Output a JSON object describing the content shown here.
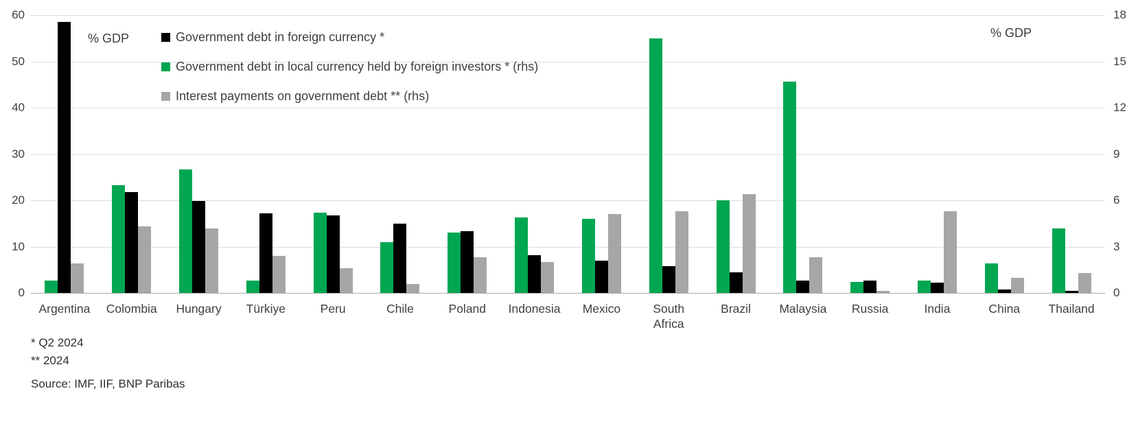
{
  "chart_data": {
    "type": "bar",
    "title": "",
    "categories": [
      "Argentina",
      "Colombia",
      "Hungary",
      "Türkiye",
      "Peru",
      "Chile",
      "Poland",
      "Indonesia",
      "Mexico",
      "South Africa",
      "Brazil",
      "Malaysia",
      "Russia",
      "India",
      "China",
      "Thailand"
    ],
    "series": [
      {
        "name": "Government debt in foreign currency *",
        "axis": "left",
        "color": "#000000",
        "values": [
          58.5,
          21.8,
          19.8,
          17.2,
          16.8,
          15.0,
          13.4,
          8.2,
          7.0,
          5.8,
          4.5,
          2.7,
          2.7,
          2.2,
          0.8,
          0.4
        ]
      },
      {
        "name": "Government debt in local currency held by foreign investors * (rhs)",
        "axis": "right",
        "color": "#00A651",
        "values": [
          0.8,
          7.0,
          8.0,
          0.8,
          5.2,
          3.3,
          3.9,
          4.9,
          4.8,
          16.5,
          6.0,
          13.7,
          0.7,
          0.8,
          1.9,
          4.2
        ]
      },
      {
        "name": "Interest payments on government debt ** (rhs)",
        "axis": "right",
        "color": "#A6A6A6",
        "values": [
          1.9,
          4.3,
          4.2,
          2.4,
          1.6,
          0.6,
          2.3,
          2.0,
          5.1,
          5.3,
          6.4,
          2.3,
          0.15,
          5.3,
          1.0,
          1.3
        ]
      }
    ],
    "group_bar_order": [
      1,
      0,
      2
    ],
    "left_axis": {
      "label": "% GDP",
      "min": 0,
      "max": 60,
      "ticks": [
        0,
        10,
        20,
        30,
        40,
        50,
        60
      ]
    },
    "right_axis": {
      "label": "% GDP",
      "min": 0,
      "max": 18,
      "ticks": [
        0,
        3,
        6,
        9,
        12,
        15,
        18
      ]
    },
    "grid": true,
    "legend_position": "top-left"
  },
  "footnotes": [
    "* Q2 2024",
    "** 2024"
  ],
  "source": "Source: IMF, IIF, BNP Paribas"
}
